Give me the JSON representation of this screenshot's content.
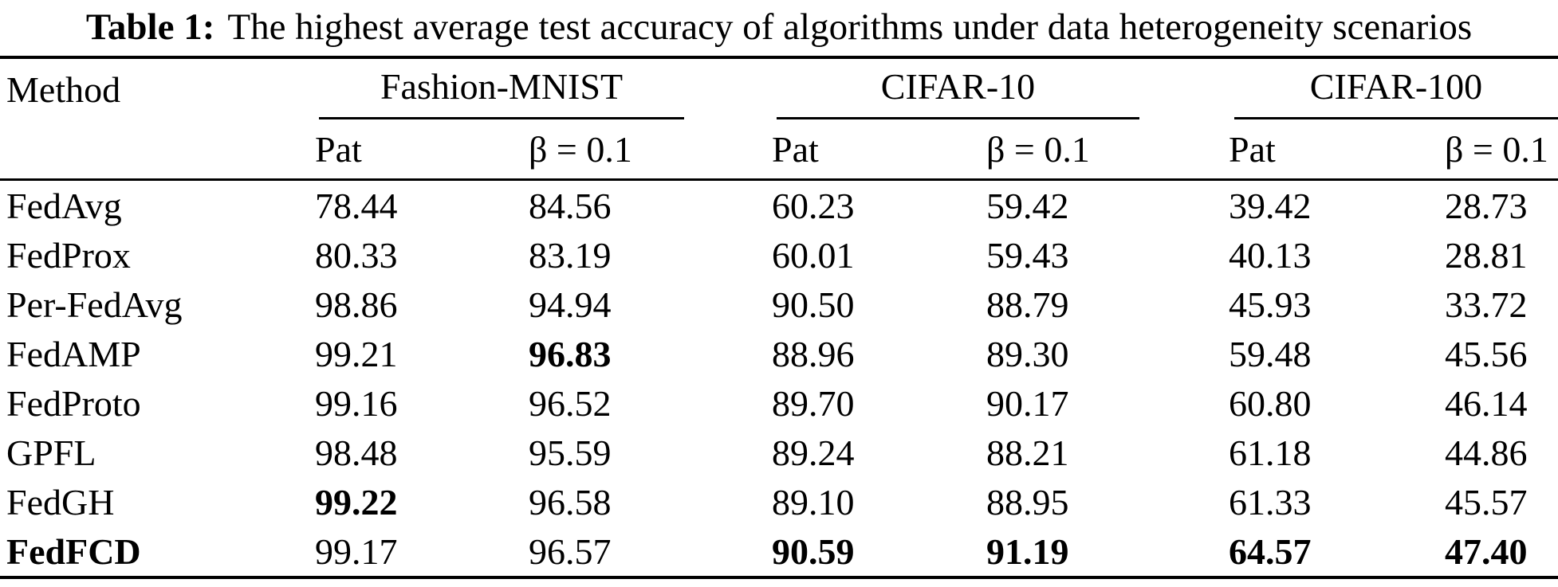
{
  "caption": {
    "label": "Table 1:",
    "text": "The highest average test accuracy of algorithms under data heterogeneity scenarios"
  },
  "table": {
    "method_header": "Method",
    "groups": [
      {
        "name": "Fashion-MNIST",
        "subcols": [
          "Pat",
          "β = 0.1"
        ]
      },
      {
        "name": "CIFAR-10",
        "subcols": [
          "Pat",
          "β = 0.1"
        ]
      },
      {
        "name": "CIFAR-100",
        "subcols": [
          "Pat",
          "β = 0.1"
        ]
      }
    ],
    "rows": [
      {
        "method": "FedAvg",
        "bold_method": false,
        "values": [
          "78.44",
          "84.56",
          "60.23",
          "59.42",
          "39.42",
          "28.73"
        ],
        "bold": [
          false,
          false,
          false,
          false,
          false,
          false
        ]
      },
      {
        "method": "FedProx",
        "bold_method": false,
        "values": [
          "80.33",
          "83.19",
          "60.01",
          "59.43",
          "40.13",
          "28.81"
        ],
        "bold": [
          false,
          false,
          false,
          false,
          false,
          false
        ]
      },
      {
        "method": "Per-FedAvg",
        "bold_method": false,
        "values": [
          "98.86",
          "94.94",
          "90.50",
          "88.79",
          "45.93",
          "33.72"
        ],
        "bold": [
          false,
          false,
          false,
          false,
          false,
          false
        ]
      },
      {
        "method": "FedAMP",
        "bold_method": false,
        "values": [
          "99.21",
          "96.83",
          "88.96",
          "89.30",
          "59.48",
          "45.56"
        ],
        "bold": [
          false,
          true,
          false,
          false,
          false,
          false
        ]
      },
      {
        "method": "FedProto",
        "bold_method": false,
        "values": [
          "99.16",
          "96.52",
          "89.70",
          "90.17",
          "60.80",
          "46.14"
        ],
        "bold": [
          false,
          false,
          false,
          false,
          false,
          false
        ]
      },
      {
        "method": "GPFL",
        "bold_method": false,
        "values": [
          "98.48",
          "95.59",
          "89.24",
          "88.21",
          "61.18",
          "44.86"
        ],
        "bold": [
          false,
          false,
          false,
          false,
          false,
          false
        ]
      },
      {
        "method": "FedGH",
        "bold_method": false,
        "values": [
          "99.22",
          "96.58",
          "89.10",
          "88.95",
          "61.33",
          "45.57"
        ],
        "bold": [
          true,
          false,
          false,
          false,
          false,
          false
        ]
      },
      {
        "method": "FedFCD",
        "bold_method": true,
        "values": [
          "99.17",
          "96.57",
          "90.59",
          "91.19",
          "64.57",
          "47.40"
        ],
        "bold": [
          false,
          false,
          true,
          true,
          true,
          true
        ]
      }
    ]
  }
}
